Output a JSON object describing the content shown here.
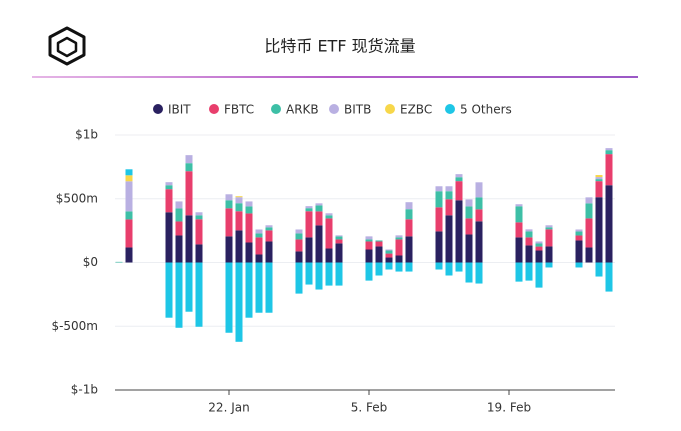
{
  "chart_data": {
    "type": "stacked-bar",
    "title": "比特币 ETF 现货流量",
    "categories": [
      null,
      null,
      null,
      null,
      null,
      null,
      null,
      null,
      null,
      null,
      null,
      "22. Jan",
      null,
      null,
      null,
      null,
      null,
      null,
      null,
      null,
      null,
      null,
      null,
      null,
      null,
      "5. Feb",
      null,
      null,
      null,
      null,
      null,
      null,
      null,
      null,
      null,
      null,
      null,
      null,
      null,
      "19. Feb",
      null,
      null,
      null,
      null,
      null,
      null,
      null,
      null,
      null,
      null
    ],
    "series": [
      {
        "name": "IBIT",
        "color": "#2a2160",
        "values": [
          0,
          118,
          null,
          null,
          null,
          394,
          212,
          370,
          142,
          null,
          null,
          205,
          252,
          157,
          63,
          165,
          null,
          null,
          87,
          197,
          291,
          110,
          150,
          null,
          null,
          102,
          126,
          39,
          55,
          205,
          null,
          null,
          244,
          370,
          488,
          220,
          323,
          null,
          null,
          null,
          197,
          134,
          94,
          126,
          null,
          null,
          173,
          118,
          512,
          606
        ]
      },
      {
        "name": "FBTC",
        "color": "#e83e6c",
        "values": [
          0,
          220,
          null,
          null,
          null,
          181,
          110,
          346,
          197,
          null,
          null,
          220,
          150,
          228,
          134,
          87,
          null,
          null,
          94,
          205,
          110,
          236,
          31,
          null,
          null,
          63,
          39,
          31,
          126,
          134,
          null,
          null,
          189,
          126,
          150,
          126,
          94,
          null,
          null,
          null,
          118,
          63,
          31,
          134,
          null,
          null,
          39,
          228,
          126,
          244
        ]
      },
      {
        "name": "ARKB",
        "color": "#3dbfa6",
        "values": [
          5,
          63,
          null,
          null,
          null,
          31,
          102,
          63,
          31,
          null,
          null,
          63,
          63,
          55,
          31,
          24,
          null,
          null,
          47,
          24,
          47,
          24,
          24,
          null,
          null,
          16,
          8,
          24,
          16,
          79,
          null,
          null,
          126,
          63,
          31,
          94,
          94,
          null,
          null,
          null,
          126,
          47,
          24,
          16,
          null,
          null,
          31,
          118,
          16,
          31
        ]
      },
      {
        "name": "BITB",
        "color": "#b9b0e2",
        "values": [
          0,
          236,
          null,
          null,
          null,
          24,
          55,
          63,
          24,
          null,
          null,
          47,
          47,
          39,
          31,
          16,
          null,
          null,
          31,
          16,
          16,
          16,
          8,
          null,
          null,
          24,
          0,
          8,
          16,
          55,
          null,
          null,
          39,
          39,
          24,
          55,
          118,
          null,
          null,
          null,
          16,
          16,
          16,
          16,
          null,
          null,
          16,
          47,
          16,
          16
        ]
      },
      {
        "name": "EZBC",
        "color": "#f7d74a",
        "values": [
          0,
          47,
          null,
          null,
          null,
          0,
          0,
          0,
          0,
          null,
          null,
          0,
          8,
          0,
          0,
          0,
          null,
          null,
          0,
          0,
          0,
          0,
          0,
          null,
          null,
          0,
          0,
          0,
          0,
          0,
          null,
          null,
          0,
          0,
          0,
          0,
          0,
          null,
          null,
          null,
          0,
          0,
          0,
          0,
          null,
          null,
          0,
          0,
          16,
          0
        ]
      },
      {
        "name": "5 Others",
        "color": "#1ec6e6",
        "values": [
          0,
          47,
          null,
          null,
          null,
          -433,
          -512,
          -386,
          -504,
          null,
          null,
          -551,
          -622,
          -433,
          -394,
          -394,
          null,
          null,
          -244,
          -173,
          -212,
          -181,
          -181,
          null,
          null,
          -142,
          -102,
          -55,
          -71,
          -71,
          null,
          null,
          -55,
          -102,
          -71,
          -157,
          -165,
          null,
          null,
          null,
          -150,
          -142,
          -197,
          -39,
          null,
          null,
          -39,
          0,
          -110,
          -228
        ]
      }
    ],
    "ylim": [
      -1000,
      1000
    ],
    "yticks": [
      {
        "value": 1000,
        "label": "$1b"
      },
      {
        "value": 500,
        "label": "$500m"
      },
      {
        "value": 0,
        "label": "$0"
      },
      {
        "value": -500,
        "label": "$-500m"
      },
      {
        "value": -1000,
        "label": "$-1b"
      }
    ],
    "grid": true
  }
}
